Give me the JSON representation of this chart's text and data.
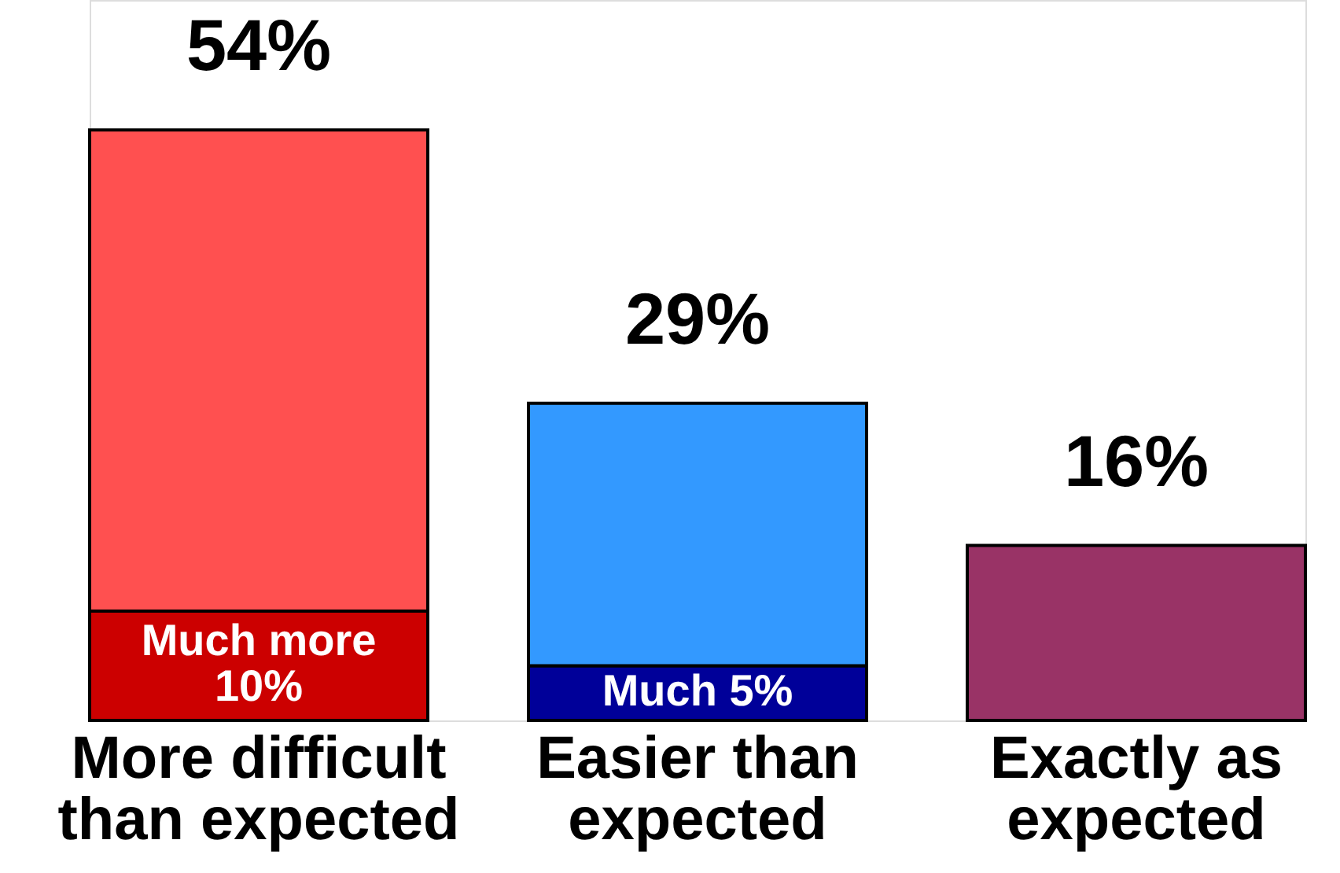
{
  "chart_data": {
    "type": "bar",
    "stacked": true,
    "categories": [
      "More difficult than expected",
      "Easier than expected",
      "Exactly as expected"
    ],
    "series": [
      {
        "colors": [
          "#cc0000",
          "#000099",
          null
        ],
        "values": [
          10,
          5,
          null
        ],
        "value_labels": [
          "Much more 10%",
          "Much 5%",
          null
        ]
      },
      {
        "colors": [
          "#ff5050",
          "#3399ff",
          "#993366"
        ],
        "values": [
          44,
          24,
          16
        ]
      }
    ],
    "totals": [
      "54%",
      "29%",
      "16%"
    ]
  }
}
